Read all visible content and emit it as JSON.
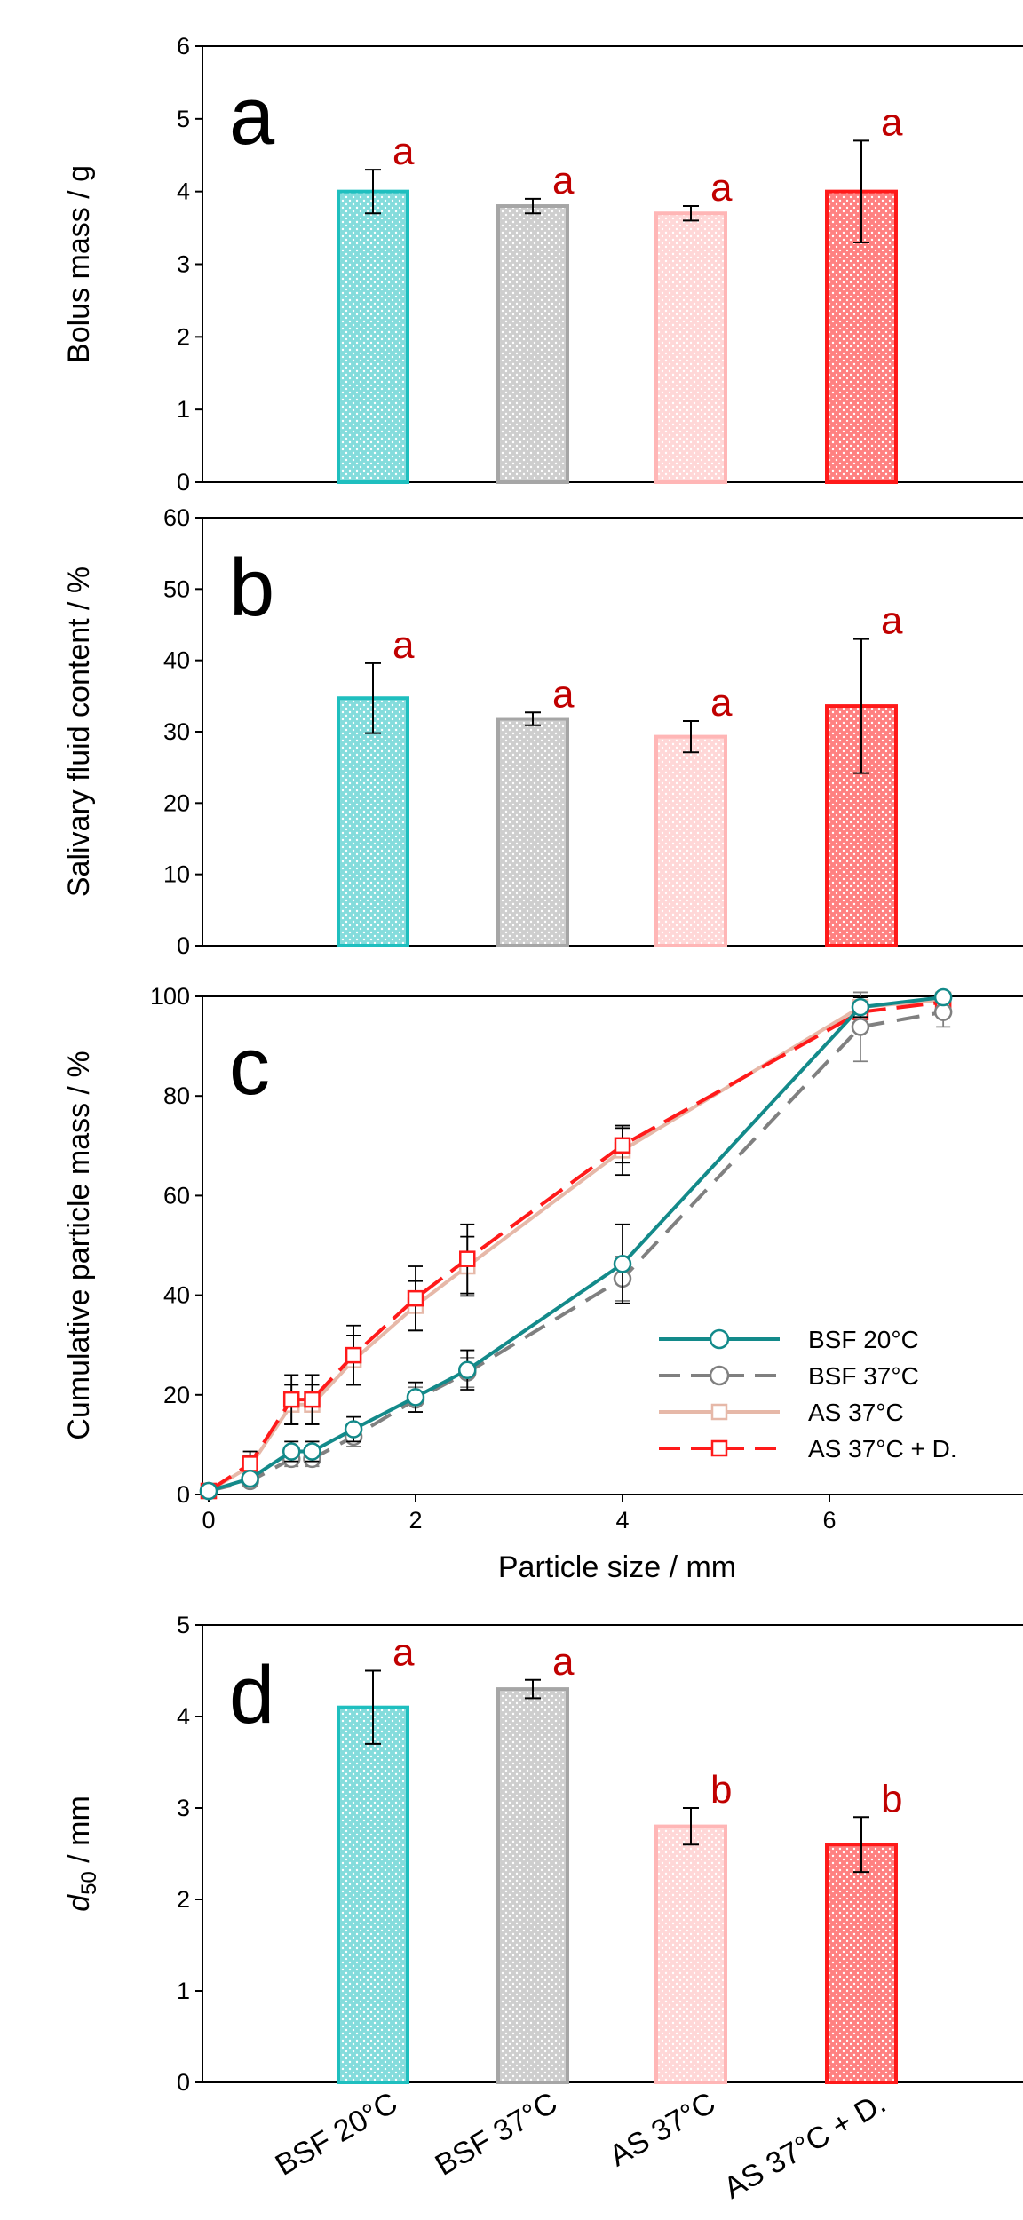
{
  "categories": [
    "BSF 20°C",
    "BSF 37°C",
    "AS 37°C",
    "AS 37°C + D."
  ],
  "colors": {
    "teal": "#1fbfbf",
    "grey": "#a6a6a6",
    "pink": "#ffb6b6",
    "red": "#ff1a1a",
    "line_teal": "#138a8a",
    "line_grey": "#808080",
    "line_pink": "#e6b8a8",
    "letter": "#c00000"
  },
  "chart_data": [
    {
      "type": "bar",
      "panel_label": "a",
      "ylabel": "Bolus mass / g",
      "ylim": [
        0,
        6
      ],
      "yticks": [
        "0",
        "1",
        "2",
        "3",
        "4",
        "5",
        "6"
      ],
      "categories": [
        "BSF 20°C",
        "BSF 37°C",
        "AS 37°C",
        "AS 37°C + D."
      ],
      "values": [
        4.0,
        3.8,
        3.7,
        4.0
      ],
      "errors": [
        0.3,
        0.1,
        0.1,
        0.7
      ],
      "letters": [
        "a",
        "a",
        "a",
        "a"
      ]
    },
    {
      "type": "bar",
      "panel_label": "b",
      "ylabel": "Salivary fluid content / %",
      "ylim": [
        0,
        60
      ],
      "yticks": [
        "0",
        "10",
        "20",
        "30",
        "40",
        "50",
        "60"
      ],
      "categories": [
        "BSF 20°C",
        "BSF 37°C",
        "AS 37°C",
        "AS 37°C + D."
      ],
      "values": [
        34.7,
        31.8,
        29.3,
        33.6
      ],
      "errors": [
        4.9,
        0.9,
        2.2,
        9.4
      ],
      "letters": [
        "a",
        "a",
        "a",
        "a"
      ]
    },
    {
      "type": "line",
      "panel_label": "c",
      "xlabel": "Particle size / mm",
      "ylabel": "Cumulative particle mass / %",
      "xlim": [
        0,
        8
      ],
      "ylim": [
        0,
        100
      ],
      "xticks": [
        "0",
        "2",
        "4",
        "6"
      ],
      "yticks": [
        "0",
        "20",
        "40",
        "60",
        "80",
        "100"
      ],
      "legend_position": "lower-right",
      "series": [
        {
          "name": "BSF 20°C",
          "x": [
            0,
            0.4,
            0.8,
            1.0,
            1.4,
            2.0,
            2.5,
            4.0,
            6.3,
            7.1
          ],
          "y": [
            0,
            2.5,
            8,
            8,
            12.5,
            19,
            24.5,
            46,
            98,
            100
          ],
          "err": [
            0,
            1,
            2,
            2,
            2.5,
            3,
            4,
            8,
            2,
            1
          ]
        },
        {
          "name": "BSF 37°C",
          "x": [
            0,
            0.4,
            0.8,
            1.0,
            1.4,
            2.0,
            2.5,
            4.0,
            6.3,
            7.1
          ],
          "y": [
            0,
            2,
            6.5,
            6.5,
            11,
            18.5,
            24,
            43,
            94,
            97
          ],
          "err": [
            0,
            1,
            1.5,
            1.5,
            2,
            2.5,
            3,
            4.5,
            7,
            3
          ]
        },
        {
          "name": "AS 37°C",
          "x": [
            0,
            0.4,
            0.8,
            1.0,
            1.4,
            2.0,
            2.5,
            4.0,
            6.3,
            7.1
          ],
          "y": [
            0,
            5,
            17.5,
            17.5,
            26.5,
            37.5,
            45.5,
            69,
            98,
            99.5
          ],
          "err": [
            0,
            2,
            4,
            4,
            5,
            5,
            6,
            5,
            2,
            1
          ]
        },
        {
          "name": "AS 37°C + D.",
          "x": [
            0,
            0.4,
            0.8,
            1.0,
            1.4,
            2.0,
            2.5,
            4.0,
            6.3,
            7.1
          ],
          "y": [
            0,
            5.5,
            18.5,
            18.5,
            27.5,
            39,
            47,
            70,
            97,
            99
          ],
          "err": [
            0,
            2.5,
            5,
            5,
            6,
            6.5,
            7,
            3.5,
            2,
            1
          ]
        }
      ]
    },
    {
      "type": "bar",
      "panel_label": "d",
      "ylabel_main": "d",
      "ylabel_sub": "50",
      "ylabel_unit": " / mm",
      "ylim": [
        0,
        5
      ],
      "yticks": [
        "0",
        "1",
        "2",
        "3",
        "4",
        "5"
      ],
      "categories": [
        "BSF 20°C",
        "BSF 37°C",
        "AS 37°C",
        "AS 37°C + D."
      ],
      "values": [
        4.1,
        4.3,
        2.8,
        2.6
      ],
      "errors": [
        0.4,
        0.1,
        0.2,
        0.3
      ],
      "letters": [
        "a",
        "a",
        "b",
        "b"
      ]
    }
  ]
}
